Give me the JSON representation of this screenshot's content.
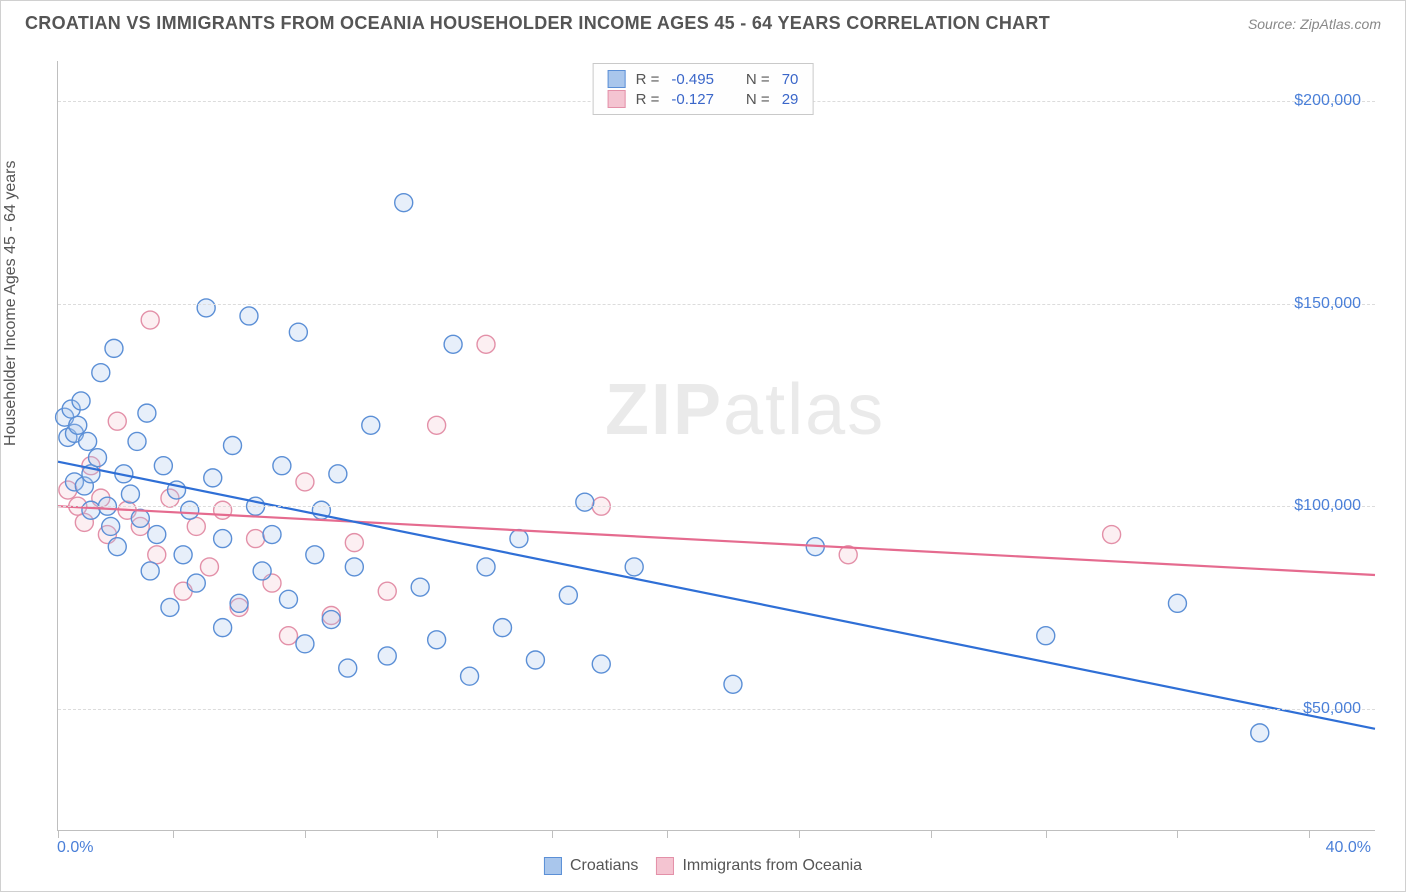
{
  "title": "CROATIAN VS IMMIGRANTS FROM OCEANIA HOUSEHOLDER INCOME AGES 45 - 64 YEARS CORRELATION CHART",
  "source": "Source: ZipAtlas.com",
  "watermark_a": "ZIP",
  "watermark_b": "atlas",
  "yaxis_title": "Householder Income Ages 45 - 64 years",
  "chart": {
    "type": "scatter",
    "background_color": "#ffffff",
    "grid_color": "#dcdcdc",
    "axis_color": "#bfbfbf",
    "tick_label_color": "#4a7fd8",
    "title_color": "#555555",
    "title_fontsize": 18,
    "label_fontsize": 16,
    "tick_fontsize": 16,
    "xlim": [
      0,
      40
    ],
    "ylim": [
      20000,
      210000
    ],
    "x_min_label": "0.0%",
    "x_max_label": "40.0%",
    "y_ticks": [
      50000,
      100000,
      150000,
      200000
    ],
    "y_tick_labels": [
      "$50,000",
      "$100,000",
      "$150,000",
      "$200,000"
    ],
    "x_tick_positions": [
      0,
      3.5,
      7.5,
      11.5,
      15,
      18.5,
      22.5,
      26.5,
      30,
      34,
      38
    ],
    "marker_radius": 9,
    "marker_stroke_width": 1.4,
    "marker_fill_opacity": 0.28,
    "reg_line_width": 2.2,
    "series": {
      "croatians": {
        "label": "Croatians",
        "color_stroke": "#5b8fd6",
        "color_fill": "#a9c6ec",
        "reg_line_color": "#2f6fd6",
        "R": "-0.495",
        "N": "70",
        "reg_line": {
          "x1": 0,
          "y1": 111000,
          "x2": 40,
          "y2": 45000
        },
        "points": [
          [
            0.2,
            122000
          ],
          [
            0.3,
            117000
          ],
          [
            0.4,
            124000
          ],
          [
            0.5,
            106000
          ],
          [
            0.5,
            118000
          ],
          [
            0.6,
            120000
          ],
          [
            0.7,
            126000
          ],
          [
            0.8,
            105000
          ],
          [
            0.9,
            116000
          ],
          [
            1.0,
            108000
          ],
          [
            1.0,
            99000
          ],
          [
            1.2,
            112000
          ],
          [
            1.3,
            133000
          ],
          [
            1.5,
            100000
          ],
          [
            1.6,
            95000
          ],
          [
            1.7,
            139000
          ],
          [
            1.8,
            90000
          ],
          [
            2.0,
            108000
          ],
          [
            2.2,
            103000
          ],
          [
            2.4,
            116000
          ],
          [
            2.5,
            97000
          ],
          [
            2.7,
            123000
          ],
          [
            2.8,
            84000
          ],
          [
            3.0,
            93000
          ],
          [
            3.2,
            110000
          ],
          [
            3.4,
            75000
          ],
          [
            3.6,
            104000
          ],
          [
            3.8,
            88000
          ],
          [
            4.0,
            99000
          ],
          [
            4.2,
            81000
          ],
          [
            4.5,
            149000
          ],
          [
            4.7,
            107000
          ],
          [
            5.0,
            92000
          ],
          [
            5.3,
            115000
          ],
          [
            5.5,
            76000
          ],
          [
            5.8,
            147000
          ],
          [
            5.0,
            70000
          ],
          [
            6.0,
            100000
          ],
          [
            6.2,
            84000
          ],
          [
            6.5,
            93000
          ],
          [
            6.8,
            110000
          ],
          [
            7.0,
            77000
          ],
          [
            7.3,
            143000
          ],
          [
            7.5,
            66000
          ],
          [
            7.8,
            88000
          ],
          [
            8.0,
            99000
          ],
          [
            8.3,
            72000
          ],
          [
            8.5,
            108000
          ],
          [
            8.8,
            60000
          ],
          [
            9.0,
            85000
          ],
          [
            9.5,
            120000
          ],
          [
            10.0,
            63000
          ],
          [
            10.5,
            175000
          ],
          [
            11.0,
            80000
          ],
          [
            11.5,
            67000
          ],
          [
            12.0,
            140000
          ],
          [
            12.5,
            58000
          ],
          [
            13.0,
            85000
          ],
          [
            13.5,
            70000
          ],
          [
            14.0,
            92000
          ],
          [
            14.5,
            62000
          ],
          [
            15.5,
            78000
          ],
          [
            16.0,
            101000
          ],
          [
            16.5,
            61000
          ],
          [
            17.5,
            85000
          ],
          [
            20.5,
            56000
          ],
          [
            23.0,
            90000
          ],
          [
            30.0,
            68000
          ],
          [
            34.0,
            76000
          ],
          [
            36.5,
            44000
          ]
        ]
      },
      "oceania": {
        "label": "Immigrants from Oceania",
        "color_stroke": "#e390a8",
        "color_fill": "#f4c4d1",
        "reg_line_color": "#e56b8f",
        "R": "-0.127",
        "N": "29",
        "reg_line": {
          "x1": 0,
          "y1": 100000,
          "x2": 40,
          "y2": 83000
        },
        "points": [
          [
            0.3,
            104000
          ],
          [
            0.6,
            100000
          ],
          [
            0.8,
            96000
          ],
          [
            1.0,
            110000
          ],
          [
            1.3,
            102000
          ],
          [
            1.5,
            93000
          ],
          [
            1.8,
            121000
          ],
          [
            2.1,
            99000
          ],
          [
            2.5,
            95000
          ],
          [
            2.8,
            146000
          ],
          [
            3.0,
            88000
          ],
          [
            3.4,
            102000
          ],
          [
            3.8,
            79000
          ],
          [
            4.2,
            95000
          ],
          [
            4.6,
            85000
          ],
          [
            5.0,
            99000
          ],
          [
            5.5,
            75000
          ],
          [
            6.0,
            92000
          ],
          [
            6.5,
            81000
          ],
          [
            7.0,
            68000
          ],
          [
            7.5,
            106000
          ],
          [
            8.3,
            73000
          ],
          [
            9.0,
            91000
          ],
          [
            10.0,
            79000
          ],
          [
            11.5,
            120000
          ],
          [
            13.0,
            140000
          ],
          [
            16.5,
            100000
          ],
          [
            24.0,
            88000
          ],
          [
            32.0,
            93000
          ]
        ]
      }
    }
  },
  "legend_top": {
    "r_label": "R =",
    "n_label": "N ="
  }
}
